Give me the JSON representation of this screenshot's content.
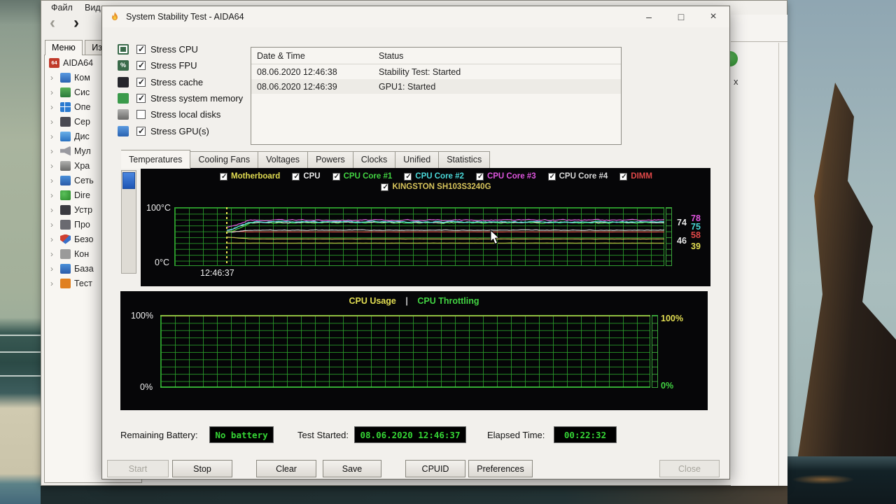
{
  "desktop": {
    "menubar": [
      "Файл",
      "Вид"
    ],
    "nav_back": "‹",
    "nav_forward": "›",
    "sidebar_tabs": [
      {
        "label": "Меню",
        "active": true
      },
      {
        "label": "Из",
        "active": false
      }
    ],
    "tree": [
      {
        "label": "AIDA64",
        "icon": "aida64",
        "icon_text": "64",
        "root": true
      },
      {
        "label": "Ком",
        "icon": "computer"
      },
      {
        "label": "Сис",
        "icon": "motherboard"
      },
      {
        "label": "Опе",
        "icon": "os"
      },
      {
        "label": "Сер",
        "icon": "server"
      },
      {
        "label": "Дис",
        "icon": "display"
      },
      {
        "label": "Мул",
        "icon": "multimedia"
      },
      {
        "label": "Хра",
        "icon": "storage"
      },
      {
        "label": "Сеть",
        "icon": "network"
      },
      {
        "label": "Dire",
        "icon": "directx"
      },
      {
        "label": "Устр",
        "icon": "devices"
      },
      {
        "label": "Про",
        "icon": "programs"
      },
      {
        "label": "Безо",
        "icon": "security"
      },
      {
        "label": "Кон",
        "icon": "config"
      },
      {
        "label": "База",
        "icon": "database"
      },
      {
        "label": "Тест",
        "icon": "test"
      }
    ],
    "right_pane_partial_text": "x"
  },
  "window": {
    "title": "System Stability Test - AIDA64",
    "controls": {
      "minimize": "–",
      "maximize": "□",
      "close": "×"
    },
    "stress_options": [
      {
        "label": "Stress CPU",
        "icon": "stress-cpu",
        "checked": true
      },
      {
        "label": "Stress FPU",
        "icon": "stress-fpu",
        "icon_text": "%",
        "checked": true
      },
      {
        "label": "Stress cache",
        "icon": "stress-cache",
        "checked": true
      },
      {
        "label": "Stress system memory",
        "icon": "stress-memory",
        "checked": true
      },
      {
        "label": "Stress local disks",
        "icon": "stress-disk",
        "checked": false
      },
      {
        "label": "Stress GPU(s)",
        "icon": "stress-gpu",
        "checked": true
      }
    ],
    "log": {
      "columns": [
        "Date & Time",
        "Status"
      ],
      "rows": [
        {
          "datetime": "08.06.2020 12:46:38",
          "status": "Stability Test: Started"
        },
        {
          "datetime": "08.06.2020 12:46:39",
          "status": "GPU1: Started"
        }
      ]
    },
    "tabs": [
      {
        "label": "Temperatures",
        "active": true
      },
      {
        "label": "Cooling Fans",
        "active": false
      },
      {
        "label": "Voltages",
        "active": false
      },
      {
        "label": "Powers",
        "active": false
      },
      {
        "label": "Clocks",
        "active": false
      },
      {
        "label": "Unified",
        "active": false
      },
      {
        "label": "Statistics",
        "active": false
      }
    ],
    "status": {
      "battery_label": "Remaining Battery:",
      "battery_value": "No battery",
      "started_label": "Test Started:",
      "started_value": "08.06.2020 12:46:37",
      "elapsed_label": "Elapsed Time:",
      "elapsed_value": "00:22:32"
    },
    "buttons": [
      {
        "label": "Start",
        "disabled": true
      },
      {
        "label": "Stop",
        "disabled": false
      },
      {
        "label": "Clear",
        "disabled": false
      },
      {
        "label": "Save",
        "disabled": false
      },
      {
        "label": "CPUID",
        "disabled": false
      },
      {
        "label": "Preferences",
        "disabled": false
      },
      {
        "label": "Close",
        "disabled": true
      }
    ]
  },
  "chart_data": [
    {
      "type": "line",
      "title": "Temperatures",
      "y_axis": {
        "top_label": "100°C",
        "bottom_label": "0°C",
        "min": 0,
        "max": 100
      },
      "x_start_label": "12:46:37",
      "start_fraction": 0.107,
      "grid": true,
      "legend": [
        {
          "name": "Motherboard",
          "color": "#e3de52",
          "checked": true
        },
        {
          "name": "CPU",
          "color": "#e8e8e8",
          "checked": true
        },
        {
          "name": "CPU Core #1",
          "color": "#42d442",
          "checked": true
        },
        {
          "name": "CPU Core #2",
          "color": "#4ad9d9",
          "checked": true
        },
        {
          "name": "CPU Core #3",
          "color": "#df55df",
          "checked": true
        },
        {
          "name": "CPU Core #4",
          "color": "#dadada",
          "checked": true
        },
        {
          "name": "DIMM",
          "color": "#e04848",
          "checked": true
        },
        {
          "name": "KINGSTON SH103S3240G",
          "color": "#d9c55c",
          "checked": true
        }
      ],
      "series": [
        {
          "name": "Motherboard",
          "color": "#b9ae3e",
          "value": 39,
          "amp": 0.2,
          "ramp": 0
        },
        {
          "name": "KINGSTON SH103S3240G",
          "color": "#d9c55c",
          "value": 46,
          "amp": 0.25,
          "ramp": 3
        },
        {
          "name": "DIMM",
          "color": "#e04848",
          "value": 58,
          "amp": 0.2,
          "ramp": 1
        },
        {
          "name": "CPU",
          "color": "#d8d8d8",
          "value": 61,
          "amp": 0.8,
          "ramp": -4
        },
        {
          "name": "CPU Core #1",
          "color": "#42d442",
          "value": 73.5,
          "amp": 1.8,
          "ramp": -16
        },
        {
          "name": "CPU Core #4",
          "color": "#dadada",
          "value": 74.5,
          "amp": 1.5,
          "ramp": -14
        },
        {
          "name": "CPU Core #2",
          "color": "#4ad9d9",
          "value": 75,
          "amp": 1.7,
          "ramp": -15
        },
        {
          "name": "CPU Core #3",
          "color": "#df55df",
          "value": 78,
          "amp": 1.8,
          "ramp": -12
        }
      ],
      "current_values": [
        {
          "text": "74",
          "color": "#e8e8e8",
          "col": 0,
          "y": 16
        },
        {
          "text": "78",
          "color": "#df55df",
          "col": 1,
          "y": 10
        },
        {
          "text": "75",
          "color": "#4ad9d9",
          "col": 1,
          "y": 22
        },
        {
          "text": "58",
          "color": "#e04848",
          "col": 1,
          "y": 34
        },
        {
          "text": "46",
          "color": "#e8e8e8",
          "col": 0,
          "y": 42
        },
        {
          "text": "39",
          "color": "#e3de52",
          "col": 1,
          "y": 50
        }
      ]
    },
    {
      "type": "line",
      "title_parts": [
        {
          "text": "CPU Usage",
          "color": "#e3de52"
        },
        {
          "text": "|",
          "color": "#cccccc"
        },
        {
          "text": "CPU Throttling",
          "color": "#42d442"
        }
      ],
      "y_axis": {
        "min": 0,
        "max": 100
      },
      "grid": true,
      "left_labels": [
        "100%",
        "0%"
      ],
      "right_labels": [
        {
          "text": "100%",
          "color": "#e3de52"
        },
        {
          "text": "0%",
          "color": "#42d442"
        }
      ],
      "series": [
        {
          "name": "CPU Usage",
          "color": "#e3de52",
          "value": 100,
          "amp": 0,
          "ramp": 0
        },
        {
          "name": "CPU Throttling",
          "color": "#42d442",
          "value": 0,
          "amp": 0,
          "ramp": 0
        }
      ]
    }
  ]
}
